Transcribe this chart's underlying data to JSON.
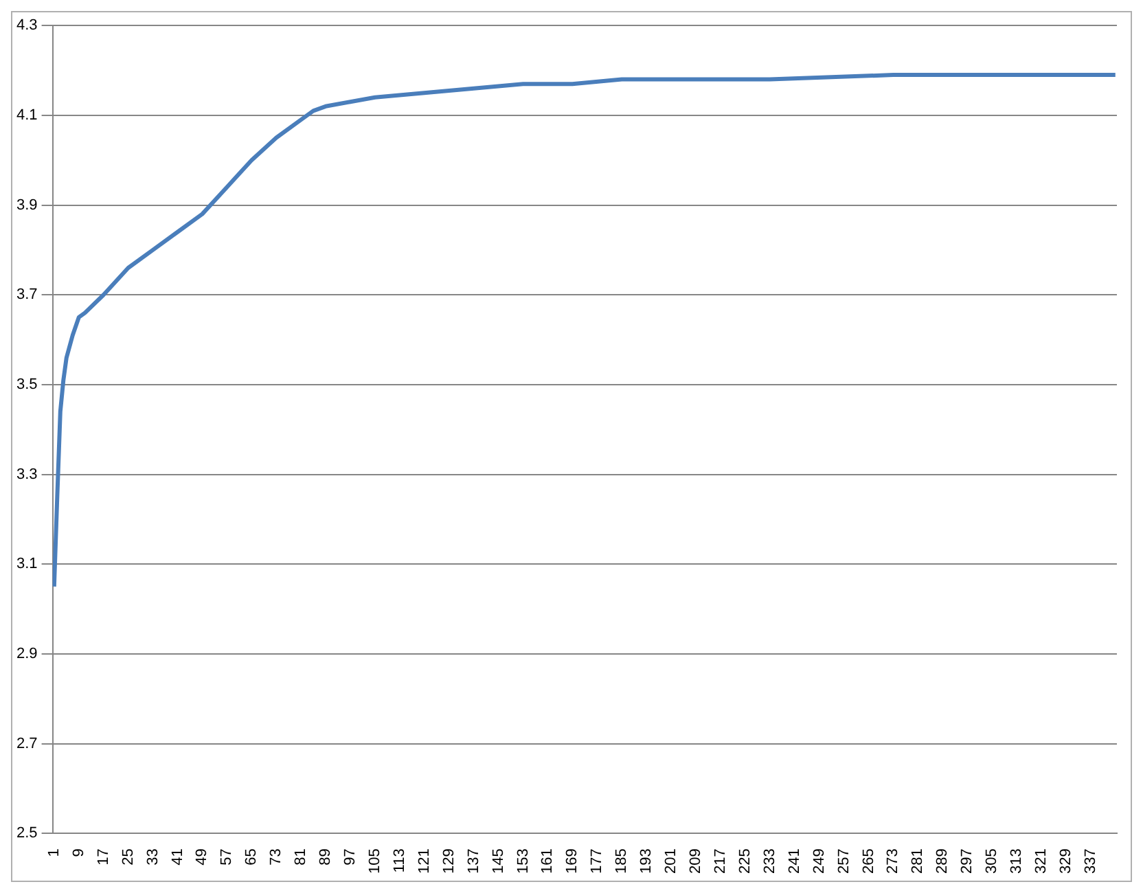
{
  "chart_data": {
    "type": "line",
    "series": [
      {
        "color": "#4a7ebb",
        "x": [
          1,
          2,
          3,
          4,
          5,
          7,
          9,
          11,
          17,
          25,
          33,
          41,
          49,
          57,
          65,
          73,
          81,
          85,
          89,
          97,
          105,
          121,
          137,
          153,
          169,
          185,
          201,
          233,
          273,
          313,
          345
        ],
        "values": [
          3.05,
          3.25,
          3.44,
          3.51,
          3.56,
          3.61,
          3.65,
          3.66,
          3.7,
          3.76,
          3.8,
          3.84,
          3.88,
          3.94,
          4.0,
          4.05,
          4.09,
          4.11,
          4.12,
          4.13,
          4.14,
          4.15,
          4.16,
          4.17,
          4.17,
          4.18,
          4.18,
          4.18,
          4.19,
          4.19,
          4.19
        ]
      }
    ],
    "xlim": [
      0.5,
      345.5
    ],
    "xticks": [
      1,
      9,
      17,
      25,
      33,
      41,
      49,
      57,
      65,
      73,
      81,
      89,
      97,
      105,
      113,
      121,
      129,
      137,
      145,
      153,
      161,
      169,
      177,
      185,
      193,
      201,
      209,
      217,
      225,
      233,
      241,
      249,
      257,
      265,
      273,
      281,
      289,
      297,
      305,
      313,
      321,
      329,
      337
    ],
    "ylim": [
      2.5,
      4.3
    ],
    "yticks": [
      {
        "value": 2.5,
        "label": "2.5"
      },
      {
        "value": 2.7,
        "label": "2.7"
      },
      {
        "value": 2.9,
        "label": "2.9"
      },
      {
        "value": 3.1,
        "label": "3.1"
      },
      {
        "value": 3.3,
        "label": "3.3"
      },
      {
        "value": 3.5,
        "label": "3.5"
      },
      {
        "value": 3.7,
        "label": "3.7"
      },
      {
        "value": 3.9,
        "label": "3.9"
      },
      {
        "value": 4.1,
        "label": "4.1"
      },
      {
        "value": 4.3,
        "label": "4.3"
      }
    ],
    "grid": "y",
    "legend": false,
    "marker": "none",
    "line_style": "solid"
  }
}
